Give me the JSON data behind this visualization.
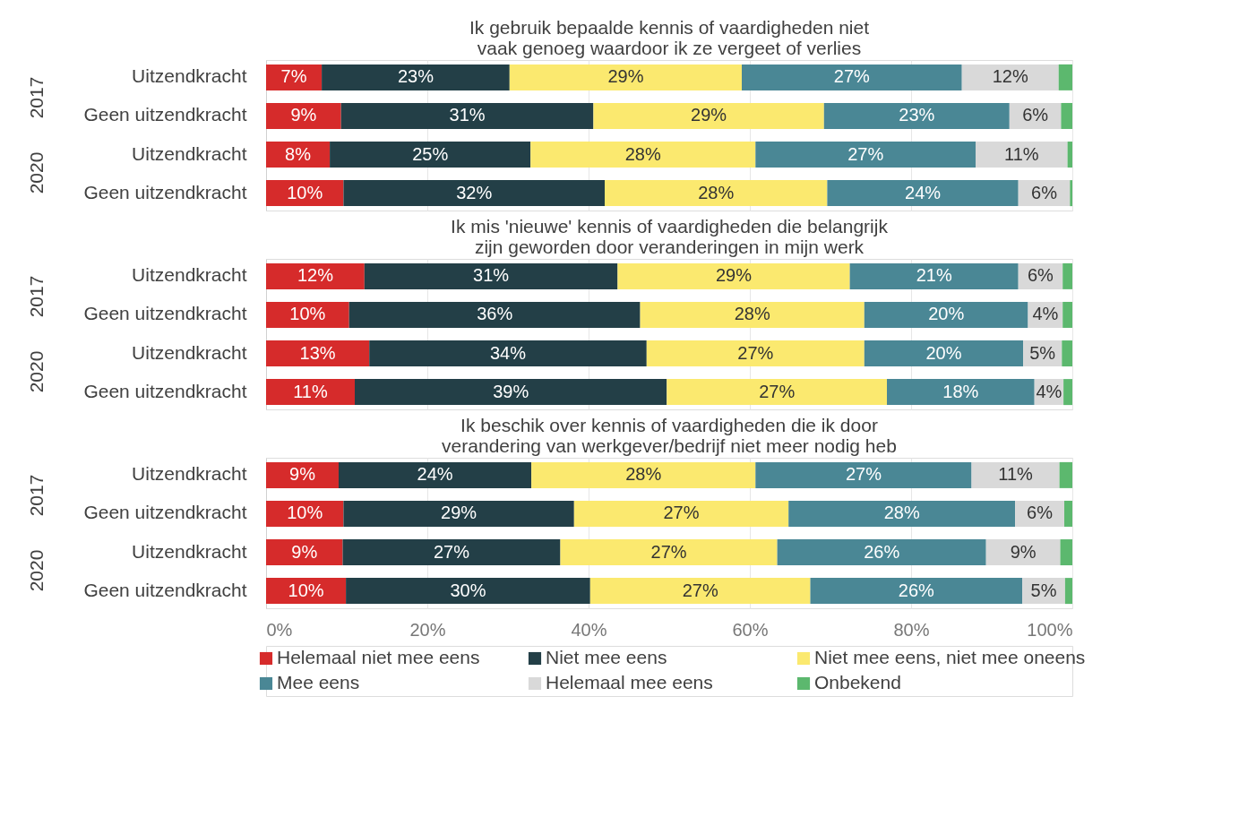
{
  "chart_data": [
    {
      "type": "bar",
      "orientation": "horizontal",
      "stacked": true,
      "title": "Ik gebruik bepaalde kennis of vaardigheden niet vaak genoeg waardoor ik ze vergeet of verlies",
      "categories": [
        "Uitzendkracht",
        "Geen uitzendkracht",
        "Uitzendkracht",
        "Geen uitzendkracht"
      ],
      "annotations": [
        "2017",
        "2020"
      ],
      "xlim": [
        0,
        100
      ],
      "xticks": [
        0,
        20,
        40,
        60,
        80,
        100
      ],
      "tick_labels": "y",
      "grid": "x",
      "legend": "bottom",
      "series": [
        {
          "name": "Helemaal niet mee eens",
          "color": "#d62b2b",
          "values": [
            6.9,
            9.3,
            7.9,
            9.6
          ],
          "value_labels": [
            "7%",
            "9%",
            "8%",
            "10%"
          ]
        },
        {
          "name": "Niet mee eens",
          "color": "#233f47",
          "values": [
            23.3,
            31.3,
            24.9,
            32.4
          ],
          "value_labels": [
            "23%",
            "31%",
            "25%",
            "32%"
          ]
        },
        {
          "name": "Niet mee eens, niet mee oneens",
          "color": "#fbe96f",
          "values": [
            28.8,
            28.6,
            27.9,
            27.6
          ],
          "value_labels": [
            "29%",
            "29%",
            "28%",
            "28%"
          ]
        },
        {
          "name": "Mee eens",
          "color": "#4a8795",
          "values": [
            27.3,
            23.0,
            27.3,
            23.7
          ],
          "value_labels": [
            "27%",
            "23%",
            "27%",
            "24%"
          ]
        },
        {
          "name": "Helemaal mee eens",
          "color": "#d9d9d9",
          "values": [
            12.0,
            6.4,
            11.4,
            6.4
          ],
          "value_labels": [
            "12%",
            "6%",
            "11%",
            "6%"
          ]
        },
        {
          "name": "Onbekend",
          "color": "#5cb86e",
          "values": [
            1.7,
            1.4,
            0.6,
            0.3
          ],
          "value_labels": [
            null,
            null,
            null,
            null
          ]
        }
      ]
    },
    {
      "type": "bar",
      "orientation": "horizontal",
      "stacked": true,
      "title": "Ik mis 'nieuwe' kennis of vaardigheden die belangrijk zijn geworden door veranderingen in mijn werk",
      "categories": [
        "Uitzendkracht",
        "Geen uitzendkracht",
        "Uitzendkracht",
        "Geen uitzendkracht"
      ],
      "annotations": [
        "2017",
        "2020"
      ],
      "xlim": [
        0,
        100
      ],
      "xticks": [
        0,
        20,
        40,
        60,
        80,
        100
      ],
      "tick_labels": "y",
      "grid": "x",
      "series": [
        {
          "color": "#d62b2b",
          "values": [
            12.2,
            10.3,
            12.8,
            11.0
          ],
          "value_labels": [
            "12%",
            "10%",
            "13%",
            "11%"
          ]
        },
        {
          "color": "#233f47",
          "values": [
            31.4,
            36.1,
            34.4,
            38.7
          ],
          "value_labels": [
            "31%",
            "36%",
            "34%",
            "39%"
          ]
        },
        {
          "color": "#fbe96f",
          "values": [
            28.8,
            27.8,
            27.0,
            27.3
          ],
          "value_labels": [
            "29%",
            "28%",
            "27%",
            "27%"
          ]
        },
        {
          "color": "#4a8795",
          "values": [
            20.9,
            20.3,
            19.7,
            18.3
          ],
          "value_labels": [
            "21%",
            "20%",
            "20%",
            "18%"
          ]
        },
        {
          "color": "#d9d9d9",
          "values": [
            5.5,
            4.3,
            4.8,
            3.6
          ],
          "value_labels": [
            "6%",
            "4%",
            "5%",
            "4%"
          ]
        },
        {
          "color": "#5cb86e",
          "values": [
            1.2,
            1.2,
            1.3,
            1.1
          ],
          "value_labels": [
            null,
            null,
            null,
            null
          ]
        }
      ]
    },
    {
      "type": "bar",
      "orientation": "horizontal",
      "stacked": true,
      "title": "Ik beschik over kennis of vaardigheden die ik door verandering van werkgever/bedrijf niet meer nodig heb",
      "categories": [
        "Uitzendkracht",
        "Geen uitzendkracht",
        "Uitzendkracht",
        "Geen uitzendkracht"
      ],
      "annotations": [
        "2017",
        "2020"
      ],
      "xlim": [
        0,
        100
      ],
      "xticks": [
        {
          "value": 0,
          "label": "0%"
        },
        {
          "value": 20,
          "label": "20%"
        },
        {
          "value": 40,
          "label": "40%"
        },
        {
          "value": 60,
          "label": "60%"
        },
        {
          "value": 80,
          "label": "80%"
        },
        {
          "value": 100,
          "label": "100%"
        }
      ],
      "grid": "x",
      "series": [
        {
          "color": "#d62b2b",
          "values": [
            9.0,
            9.6,
            9.5,
            9.9
          ],
          "value_labels": [
            "9%",
            "10%",
            "9%",
            "10%"
          ]
        },
        {
          "color": "#233f47",
          "values": [
            23.9,
            28.6,
            27.0,
            30.3
          ],
          "value_labels": [
            "24%",
            "29%",
            "27%",
            "30%"
          ]
        },
        {
          "color": "#fbe96f",
          "values": [
            27.8,
            26.6,
            26.9,
            27.3
          ],
          "value_labels": [
            "28%",
            "27%",
            "27%",
            "27%"
          ]
        },
        {
          "color": "#4a8795",
          "values": [
            26.8,
            28.1,
            25.9,
            26.3
          ],
          "value_labels": [
            "27%",
            "28%",
            "26%",
            "26%"
          ]
        },
        {
          "color": "#d9d9d9",
          "values": [
            10.9,
            6.1,
            9.2,
            5.3
          ],
          "value_labels": [
            "11%",
            "6%",
            "9%",
            "5%"
          ]
        },
        {
          "color": "#5cb86e",
          "values": [
            1.6,
            1.0,
            1.5,
            0.9
          ],
          "value_labels": [
            null,
            null,
            null,
            null
          ]
        }
      ]
    }
  ]
}
